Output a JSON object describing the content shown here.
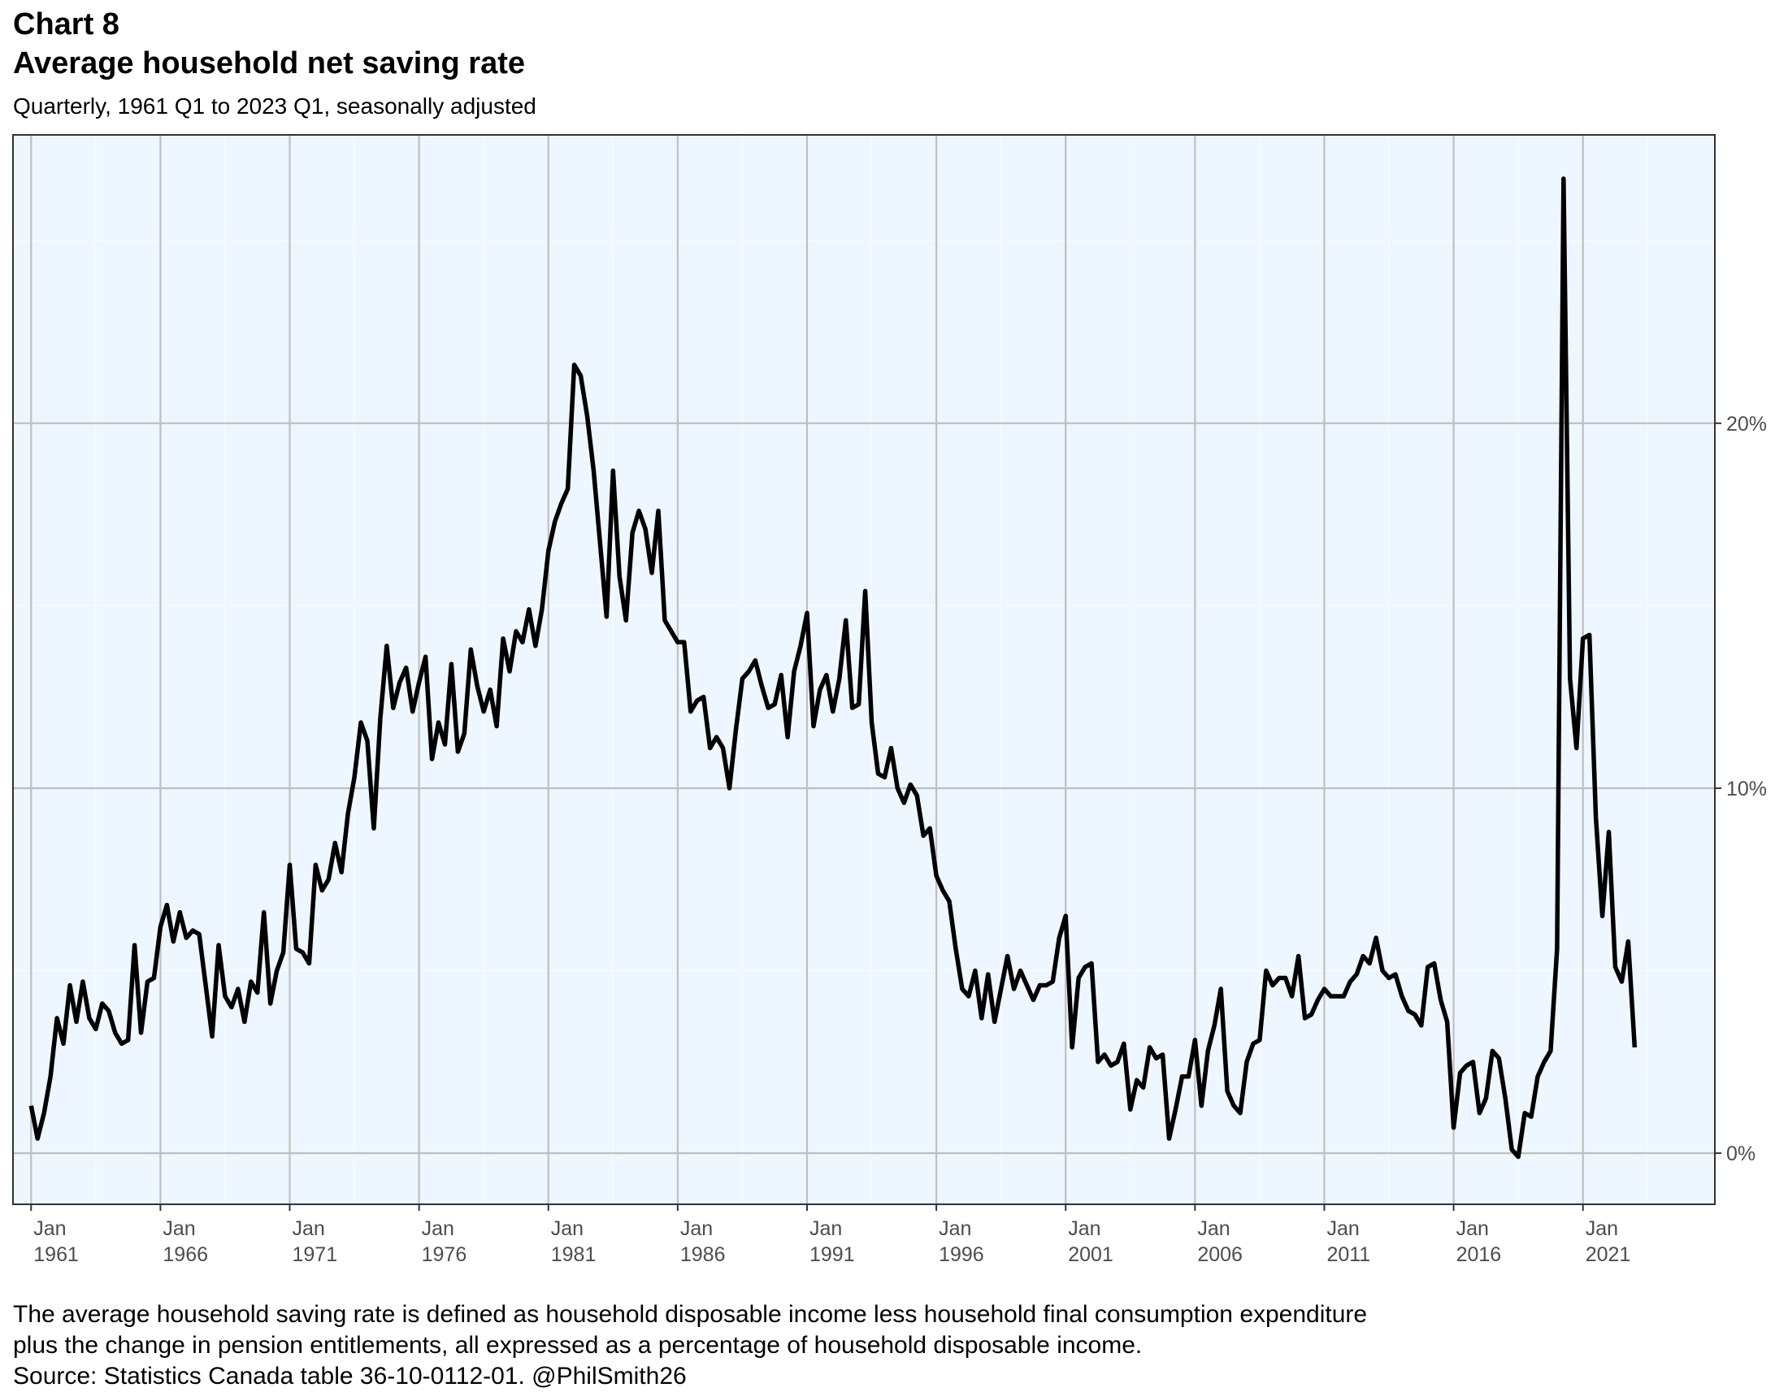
{
  "header": {
    "chart_label": "Chart 8",
    "title": "Average household net saving rate",
    "subtitle": "Quarterly, 1961 Q1 to 2023 Q1, seasonally adjusted"
  },
  "footer": {
    "caption_line_1": "The average household saving rate is defined as household disposable income less household final consumption expenditure",
    "caption_line_2": "plus the change in pension entitlements, all expressed as a percentage of household disposable income.",
    "caption_line_3": "Source: Statistics Canada table 36-10-0112-01. @PhilSmith26"
  },
  "colors": {
    "panel_background": "#eef6ff",
    "major_grid": "#bfbfbf",
    "minor_grid": "#f7fbff",
    "line": "#000000",
    "axis_text": "#4d4d4d"
  },
  "chart_data": {
    "type": "line",
    "title": "Average household net saving rate",
    "subtitle": "Quarterly, 1961 Q1 to 2023 Q1, seasonally adjusted",
    "xlabel": "",
    "ylabel": "",
    "x_start": "1961 Q1",
    "x_end": "2023 Q1",
    "frequency": "quarterly",
    "xlim": [
      1960.3,
      2026.1
    ],
    "ylim": [
      -1.4,
      27.9
    ],
    "y_axis_position": "right",
    "y_ticks": [
      0,
      10,
      20
    ],
    "y_tick_labels": [
      "0%",
      "10%",
      "20%"
    ],
    "x_ticks": [
      1961,
      1966,
      1971,
      1976,
      1981,
      1986,
      1991,
      1996,
      2001,
      2006,
      2011,
      2016,
      2021
    ],
    "x_tick_labels": [
      [
        "Jan",
        "1961"
      ],
      [
        "Jan",
        "1966"
      ],
      [
        "Jan",
        "1971"
      ],
      [
        "Jan",
        "1976"
      ],
      [
        "Jan",
        "1981"
      ],
      [
        "Jan",
        "1986"
      ],
      [
        "Jan",
        "1991"
      ],
      [
        "Jan",
        "1996"
      ],
      [
        "Jan",
        "2001"
      ],
      [
        "Jan",
        "2006"
      ],
      [
        "Jan",
        "2011"
      ],
      [
        "Jan",
        "2016"
      ],
      [
        "Jan",
        "2021"
      ]
    ],
    "grid": true,
    "legend": "none",
    "series": [
      {
        "values": [
          1.3,
          0.4,
          1.1,
          2.1,
          3.7,
          3.0,
          4.6,
          3.6,
          4.7,
          3.7,
          3.4,
          4.1,
          3.9,
          3.3,
          3.0,
          3.1,
          5.7,
          3.3,
          4.7,
          4.8,
          6.2,
          6.8,
          5.8,
          6.6,
          5.9,
          6.1,
          6.0,
          4.6,
          3.2,
          5.7,
          4.3,
          4.0,
          4.5,
          3.6,
          4.7,
          4.4,
          6.6,
          4.1,
          5.0,
          5.5,
          7.9,
          5.6,
          5.5,
          5.2,
          7.9,
          7.2,
          7.5,
          8.5,
          7.7,
          9.3,
          10.3,
          11.8,
          11.3,
          8.9,
          11.9,
          13.9,
          12.2,
          12.9,
          13.3,
          12.1,
          12.9,
          13.6,
          10.8,
          11.8,
          11.2,
          13.4,
          11.0,
          11.5,
          13.8,
          12.8,
          12.1,
          12.7,
          11.7,
          14.1,
          13.2,
          14.3,
          14.0,
          14.9,
          13.9,
          14.9,
          16.5,
          17.3,
          17.8,
          18.2,
          21.6,
          21.3,
          20.2,
          18.7,
          16.7,
          14.7,
          18.7,
          15.8,
          14.6,
          17.0,
          17.6,
          17.1,
          15.9,
          17.6,
          14.6,
          14.3,
          14.0,
          14.0,
          12.1,
          12.4,
          12.5,
          11.1,
          11.4,
          11.1,
          10.0,
          11.6,
          13.0,
          13.2,
          13.5,
          12.8,
          12.2,
          12.3,
          13.1,
          11.4,
          13.2,
          13.9,
          14.8,
          11.7,
          12.7,
          13.1,
          12.1,
          13.0,
          14.6,
          12.2,
          12.3,
          15.4,
          11.8,
          10.4,
          10.3,
          11.1,
          10.0,
          9.6,
          10.1,
          9.8,
          8.7,
          8.9,
          7.6,
          7.2,
          6.9,
          5.6,
          4.5,
          4.3,
          5.0,
          3.7,
          4.9,
          3.6,
          4.5,
          5.4,
          4.5,
          5.0,
          4.6,
          4.2,
          4.6,
          4.6,
          4.7,
          5.9,
          6.5,
          2.9,
          4.8,
          5.1,
          5.2,
          2.5,
          2.7,
          2.4,
          2.5,
          3.0,
          1.2,
          2.0,
          1.8,
          2.9,
          2.6,
          2.7,
          0.4,
          1.2,
          2.1,
          2.1,
          3.1,
          1.3,
          2.8,
          3.5,
          4.5,
          1.7,
          1.3,
          1.1,
          2.5,
          3.0,
          3.1,
          5.0,
          4.6,
          4.8,
          4.8,
          4.3,
          5.4,
          3.7,
          3.8,
          4.2,
          4.5,
          4.3,
          4.3,
          4.3,
          4.7,
          4.9,
          5.4,
          5.2,
          5.9,
          5.0,
          4.8,
          4.9,
          4.3,
          3.9,
          3.8,
          3.5,
          5.1,
          5.2,
          4.2,
          3.6,
          0.7,
          2.2,
          2.4,
          2.5,
          1.1,
          1.5,
          2.8,
          2.6,
          1.5,
          0.1,
          -0.1,
          1.1,
          1.0,
          2.1,
          2.5,
          2.8,
          5.6,
          26.7,
          13.0,
          11.1,
          14.1,
          14.2,
          9.2,
          6.5,
          8.8,
          5.1,
          4.7,
          5.8,
          2.9
        ]
      }
    ]
  }
}
